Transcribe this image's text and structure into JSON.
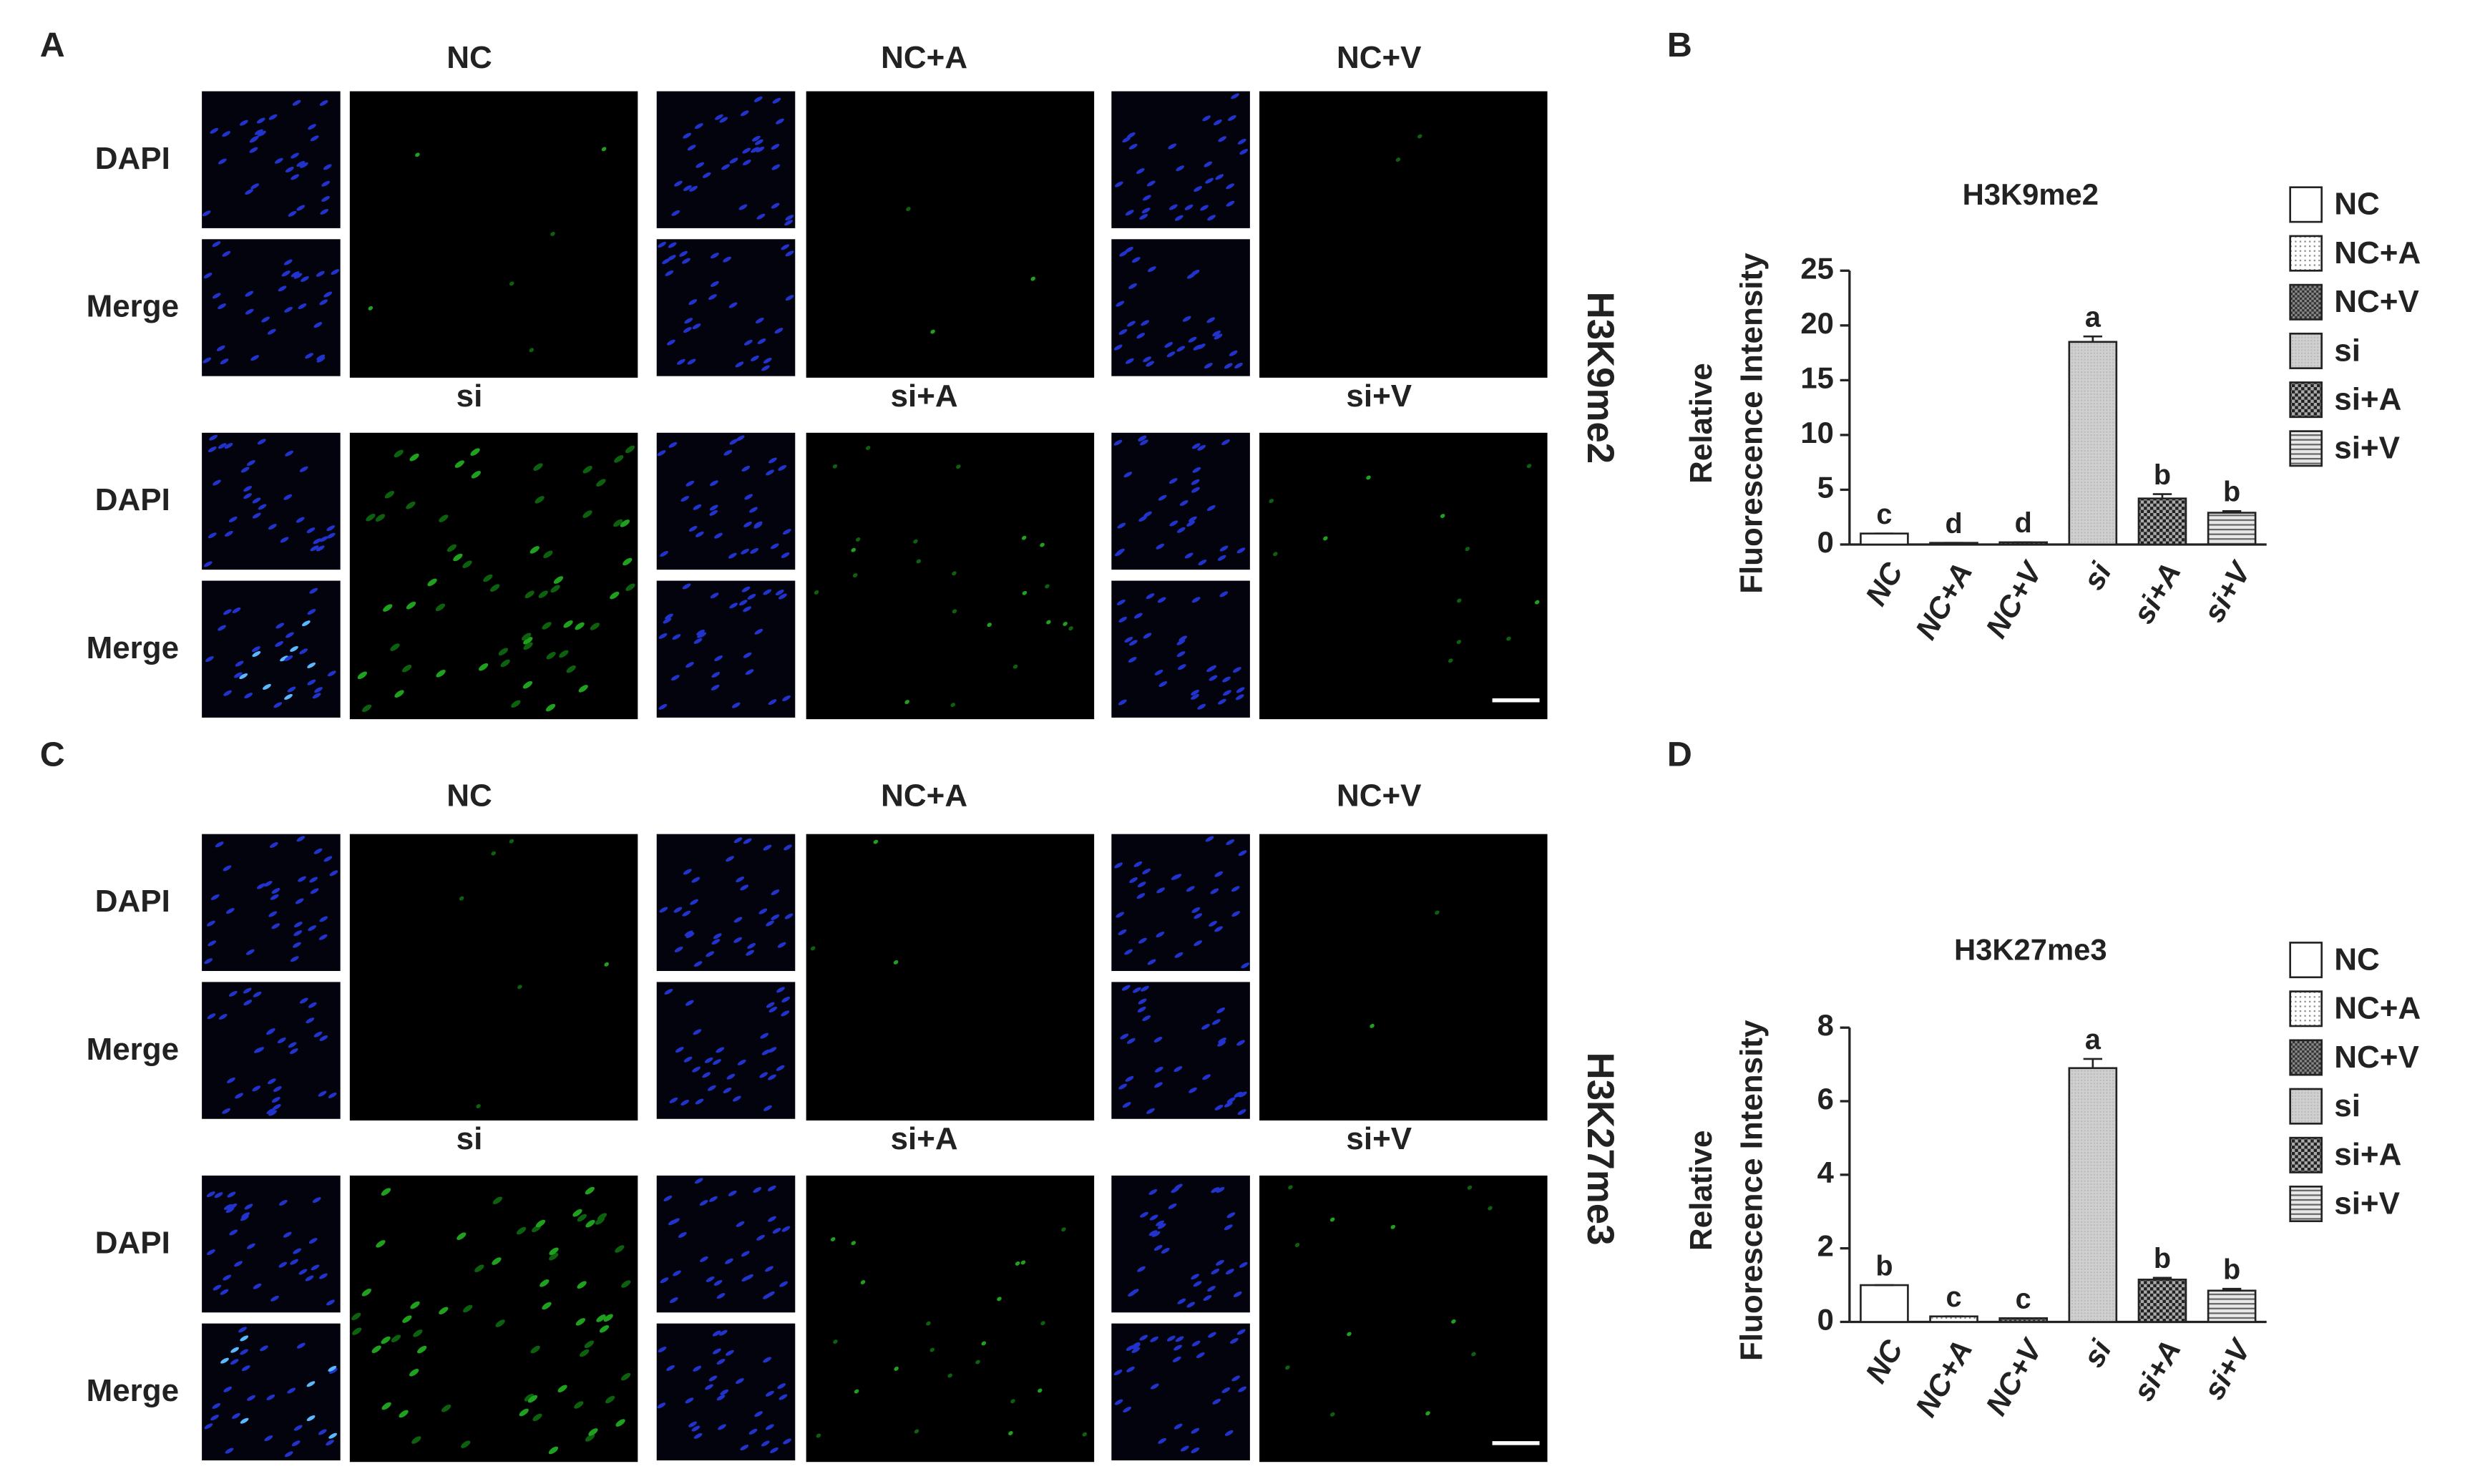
{
  "figure": {
    "panel_letters": [
      "A",
      "B",
      "C",
      "D"
    ],
    "blocks": [
      {
        "side_label": "H3K9me2",
        "groups": [
          "NC",
          "NC+A",
          "NC+V",
          "si",
          "si+A",
          "si+V"
        ],
        "rows": [
          "DAPI",
          "Merge"
        ]
      },
      {
        "side_label": "H3K27me3",
        "groups": [
          "NC",
          "NC+A",
          "NC+V",
          "si",
          "si+A",
          "si+V"
        ],
        "rows": [
          "DAPI",
          "Merge"
        ]
      }
    ]
  },
  "chart_data": [
    {
      "type": "bar",
      "title": "H3K9me2",
      "ylabel": [
        "Relative",
        "Fluorescence Intensity"
      ],
      "categories": [
        "NC",
        "NC+A",
        "NC+V",
        "si",
        "si+A",
        "si+V"
      ],
      "values": [
        1.0,
        0.15,
        0.2,
        18.5,
        4.2,
        2.9
      ],
      "errors": [
        0,
        0,
        0,
        0.5,
        0.4,
        0.15
      ],
      "letters": [
        "c",
        "d",
        "d",
        "a",
        "b",
        "b"
      ],
      "patterns": [
        "white",
        "dots",
        "checker",
        "gray",
        "checker-dark",
        "stripes"
      ],
      "ylim": [
        0,
        25
      ],
      "yticks": [
        0,
        5,
        10,
        15,
        20,
        25
      ]
    },
    {
      "type": "bar",
      "title": "H3K27me3",
      "ylabel": [
        "Relative",
        "Fluorescence Intensity"
      ],
      "categories": [
        "NC",
        "NC+A",
        "NC+V",
        "si",
        "si+A",
        "si+V"
      ],
      "values": [
        1.0,
        0.15,
        0.1,
        6.9,
        1.15,
        0.85
      ],
      "errors": [
        0,
        0,
        0,
        0.25,
        0.05,
        0.05
      ],
      "letters": [
        "b",
        "c",
        "c",
        "a",
        "b",
        "b"
      ],
      "patterns": [
        "white",
        "dots",
        "checker",
        "gray",
        "checker-dark",
        "stripes"
      ],
      "ylim": [
        0,
        8
      ],
      "yticks": [
        0,
        2,
        4,
        6,
        8
      ]
    }
  ]
}
